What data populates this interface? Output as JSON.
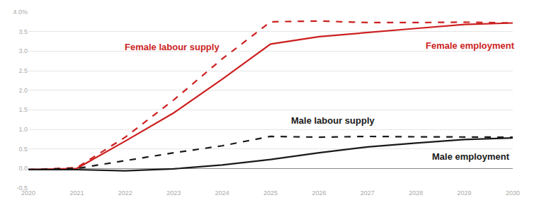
{
  "chart_data": {
    "type": "line",
    "x": [
      2020,
      2021,
      2022,
      2023,
      2024,
      2025,
      2026,
      2027,
      2028,
      2029,
      2030
    ],
    "series": [
      {
        "name": "Female labour supply",
        "color": "#cc1f1f",
        "line_style": "dashed",
        "values": [
          -0.03,
          0.02,
          0.8,
          1.75,
          2.8,
          3.75,
          3.77,
          3.73,
          3.73,
          3.74,
          3.72
        ]
      },
      {
        "name": "Female employment",
        "color": "#cc1f1f",
        "line_style": "solid",
        "values": [
          -0.03,
          0.0,
          0.7,
          1.42,
          2.28,
          3.18,
          3.37,
          3.48,
          3.58,
          3.68,
          3.72
        ]
      },
      {
        "name": "Male labour supply",
        "color": "#1a1a1a",
        "line_style": "dashed",
        "values": [
          -0.03,
          0.0,
          0.2,
          0.4,
          0.58,
          0.82,
          0.8,
          0.82,
          0.81,
          0.8,
          0.8
        ]
      },
      {
        "name": "Male employment",
        "color": "#1a1a1a",
        "line_style": "solid",
        "values": [
          -0.03,
          -0.03,
          -0.06,
          -0.01,
          0.09,
          0.23,
          0.4,
          0.55,
          0.65,
          0.74,
          0.78
        ]
      }
    ],
    "xlim": [
      2020,
      2030
    ],
    "xticks": [
      2020,
      2021,
      2022,
      2023,
      2024,
      2025,
      2026,
      2027,
      2028,
      2029,
      2030
    ],
    "ylim": [
      -0.5,
      4.0
    ],
    "yticks": [
      {
        "value": -0.5,
        "label": "-0.5"
      },
      {
        "value": 0,
        "label": "0.0"
      },
      {
        "value": 0.5,
        "label": "0.5"
      },
      {
        "value": 1,
        "label": "1.0"
      },
      {
        "value": 1.5,
        "label": "1.5"
      },
      {
        "value": 2,
        "label": "2.0"
      },
      {
        "value": 2.5,
        "label": "2.5"
      },
      {
        "value": 3,
        "label": "3.0"
      },
      {
        "value": 3.5,
        "label": "3.5"
      },
      {
        "value": 4,
        "label": "4.0%"
      }
    ],
    "grid": true
  }
}
